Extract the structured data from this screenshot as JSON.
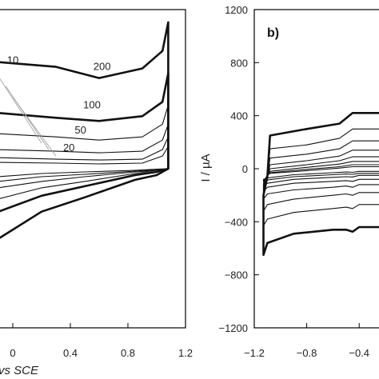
{
  "chart_data": [
    {
      "panel": "a",
      "type": "line",
      "xlabel_visible": "vs SCE",
      "xticks": [
        "0",
        "0.4",
        "0.8",
        "1.2"
      ],
      "xtick_values": [
        0,
        0.4,
        0.8,
        1.2
      ],
      "xlim": [
        -0.1,
        1.2
      ],
      "ylim": [
        -1,
        1
      ],
      "grid": false,
      "scan_rate_labels": [
        {
          "text": "10",
          "x": 0.0,
          "y": 0.66
        },
        {
          "text": "200",
          "x": 0.62,
          "y": 0.62
        },
        {
          "text": "100",
          "x": 0.55,
          "y": 0.38
        },
        {
          "text": "50",
          "x": 0.47,
          "y": 0.22
        },
        {
          "text": "20",
          "x": 0.39,
          "y": 0.11
        }
      ],
      "series": [
        {
          "upper": [
            [
              -0.1,
              0.67
            ],
            [
              0.3,
              0.64
            ],
            [
              0.6,
              0.57
            ],
            [
              0.9,
              0.63
            ],
            [
              1.04,
              0.74
            ],
            [
              1.08,
              0.92
            ]
          ],
          "lower": [
            [
              -0.1,
              -0.44
            ],
            [
              0.2,
              -0.27
            ],
            [
              0.5,
              -0.18
            ],
            [
              0.85,
              -0.07
            ],
            [
              1.0,
              -0.04
            ],
            [
              1.08,
              0.0
            ]
          ],
          "bold": true
        },
        {
          "upper": [
            [
              -0.1,
              0.35
            ],
            [
              0.3,
              0.32
            ],
            [
              0.6,
              0.3
            ],
            [
              0.9,
              0.33
            ],
            [
              1.04,
              0.42
            ],
            [
              1.08,
              0.6
            ]
          ],
          "lower": [
            [
              -0.1,
              -0.27
            ],
            [
              0.2,
              -0.17
            ],
            [
              0.5,
              -0.11
            ],
            [
              0.85,
              -0.04
            ],
            [
              1.0,
              -0.02
            ],
            [
              1.08,
              0.0
            ]
          ],
          "bold": true
        },
        {
          "upper": [
            [
              -0.1,
              0.22
            ],
            [
              0.3,
              0.2
            ],
            [
              0.6,
              0.18
            ],
            [
              0.9,
              0.2
            ],
            [
              1.04,
              0.28
            ],
            [
              1.08,
              0.4
            ]
          ],
          "lower": [
            [
              -0.1,
              -0.19
            ],
            [
              0.2,
              -0.12
            ],
            [
              0.5,
              -0.08
            ],
            [
              0.85,
              -0.03
            ],
            [
              1.0,
              -0.01
            ],
            [
              1.08,
              0.0
            ]
          ],
          "bold": false
        },
        {
          "upper": [
            [
              -0.1,
              0.12
            ],
            [
              0.3,
              0.11
            ],
            [
              0.6,
              0.1
            ],
            [
              0.9,
              0.11
            ],
            [
              1.04,
              0.18
            ],
            [
              1.08,
              0.28
            ]
          ],
          "lower": [
            [
              -0.1,
              -0.12
            ],
            [
              0.2,
              -0.08
            ],
            [
              0.5,
              -0.05
            ],
            [
              0.85,
              -0.02
            ],
            [
              1.0,
              -0.01
            ],
            [
              1.08,
              0.0
            ]
          ],
          "bold": false
        },
        {
          "upper": [
            [
              -0.1,
              0.07
            ],
            [
              0.3,
              0.06
            ],
            [
              0.6,
              0.055
            ],
            [
              0.9,
              0.06
            ],
            [
              1.04,
              0.12
            ],
            [
              1.08,
              0.2
            ]
          ],
          "lower": [
            [
              -0.1,
              -0.08
            ],
            [
              0.2,
              -0.05
            ],
            [
              0.5,
              -0.035
            ],
            [
              0.85,
              -0.015
            ],
            [
              1.0,
              -0.005
            ],
            [
              1.08,
              0.0
            ]
          ],
          "bold": false
        },
        {
          "upper": [
            [
              -0.1,
              0.04
            ],
            [
              0.3,
              0.035
            ],
            [
              0.6,
              0.03
            ],
            [
              0.9,
              0.035
            ],
            [
              1.04,
              0.08
            ],
            [
              1.08,
              0.14
            ]
          ],
          "lower": [
            [
              -0.1,
              -0.05
            ],
            [
              0.2,
              -0.03
            ],
            [
              0.5,
              -0.02
            ],
            [
              0.85,
              -0.01
            ],
            [
              1.0,
              -0.003
            ],
            [
              1.08,
              0.0
            ]
          ],
          "bold": false
        }
      ]
    },
    {
      "panel": "b",
      "type": "line",
      "title": "b)",
      "ylabel": "I / µA",
      "yticks": [
        "1200",
        "800",
        "400",
        "0",
        "−400",
        "−800",
        "−1200"
      ],
      "ytick_values": [
        1200,
        800,
        400,
        0,
        -400,
        -800,
        -1200
      ],
      "xticks": [
        "−1.2",
        "−0.8",
        "−0.4"
      ],
      "xtick_values": [
        -1.2,
        -0.8,
        -0.4
      ],
      "xlim": [
        -1.2,
        -0.2
      ],
      "ylim": [
        -1200,
        1200
      ],
      "grid": false,
      "series": [
        {
          "upper": [
            [
              -1.13,
              -200
            ],
            [
              -1.1,
              -60
            ],
            [
              -1.08,
              250
            ],
            [
              -0.8,
              300
            ],
            [
              -0.55,
              340
            ],
            [
              -0.45,
              420
            ],
            [
              -0.35,
              420
            ],
            [
              -0.2,
              420
            ]
          ],
          "lower": [
            [
              -1.13,
              -650
            ],
            [
              -1.1,
              -560
            ],
            [
              -0.9,
              -490
            ],
            [
              -0.6,
              -460
            ],
            [
              -0.5,
              -460
            ],
            [
              -0.45,
              -475
            ],
            [
              -0.4,
              -440
            ],
            [
              -0.2,
              -440
            ]
          ],
          "bold": true
        },
        {
          "upper": [
            [
              -1.13,
              -180
            ],
            [
              -1.1,
              -80
            ],
            [
              -1.08,
              150
            ],
            [
              -0.8,
              180
            ],
            [
              -0.55,
              230
            ],
            [
              -0.45,
              300
            ],
            [
              -0.35,
              300
            ],
            [
              -0.2,
              300
            ]
          ],
          "lower": [
            [
              -1.13,
              -430
            ],
            [
              -1.1,
              -380
            ],
            [
              -0.9,
              -330
            ],
            [
              -0.6,
              -300
            ],
            [
              -0.5,
              -290
            ],
            [
              -0.45,
              -300
            ],
            [
              -0.4,
              -270
            ],
            [
              -0.2,
              -270
            ]
          ],
          "bold": false
        },
        {
          "upper": [
            [
              -1.13,
              -150
            ],
            [
              -1.1,
              -70
            ],
            [
              -1.08,
              80
            ],
            [
              -0.8,
              110
            ],
            [
              -0.55,
              150
            ],
            [
              -0.45,
              210
            ],
            [
              -0.35,
              210
            ],
            [
              -0.2,
              210
            ]
          ],
          "lower": [
            [
              -1.13,
              -320
            ],
            [
              -1.1,
              -270
            ],
            [
              -0.9,
              -230
            ],
            [
              -0.6,
              -200
            ],
            [
              -0.5,
              -190
            ],
            [
              -0.45,
              -200
            ],
            [
              -0.4,
              -180
            ],
            [
              -0.2,
              -180
            ]
          ],
          "bold": false
        },
        {
          "upper": [
            [
              -1.13,
              -130
            ],
            [
              -1.1,
              -60
            ],
            [
              -1.08,
              30
            ],
            [
              -0.8,
              60
            ],
            [
              -0.55,
              95
            ],
            [
              -0.45,
              140
            ],
            [
              -0.35,
              140
            ],
            [
              -0.2,
              140
            ]
          ],
          "lower": [
            [
              -1.13,
              -230
            ],
            [
              -1.1,
              -190
            ],
            [
              -0.9,
              -160
            ],
            [
              -0.6,
              -140
            ],
            [
              -0.5,
              -130
            ],
            [
              -0.45,
              -140
            ],
            [
              -0.4,
              -120
            ],
            [
              -0.2,
              -120
            ]
          ],
          "bold": false
        },
        {
          "upper": [
            [
              -1.13,
              -120
            ],
            [
              -1.1,
              -60
            ],
            [
              -1.08,
              0
            ],
            [
              -0.8,
              30
            ],
            [
              -0.55,
              60
            ],
            [
              -0.45,
              90
            ],
            [
              -0.35,
              90
            ],
            [
              -0.2,
              90
            ]
          ],
          "lower": [
            [
              -1.13,
              -170
            ],
            [
              -1.1,
              -140
            ],
            [
              -0.9,
              -110
            ],
            [
              -0.6,
              -95
            ],
            [
              -0.5,
              -90
            ],
            [
              -0.45,
              -95
            ],
            [
              -0.4,
              -80
            ],
            [
              -0.2,
              -80
            ]
          ],
          "bold": false
        },
        {
          "upper": [
            [
              -1.13,
              -110
            ],
            [
              -1.1,
              -55
            ],
            [
              -1.08,
              -20
            ],
            [
              -0.8,
              10
            ],
            [
              -0.55,
              35
            ],
            [
              -0.45,
              55
            ],
            [
              -0.35,
              55
            ],
            [
              -0.2,
              55
            ]
          ],
          "lower": [
            [
              -1.13,
              -130
            ],
            [
              -1.1,
              -110
            ],
            [
              -0.9,
              -80
            ],
            [
              -0.6,
              -65
            ],
            [
              -0.5,
              -60
            ],
            [
              -0.45,
              -62
            ],
            [
              -0.4,
              -50
            ],
            [
              -0.2,
              -50
            ]
          ],
          "bold": false
        },
        {
          "upper": [
            [
              -1.13,
              -100
            ],
            [
              -1.1,
              -50
            ],
            [
              -1.08,
              -30
            ],
            [
              -0.8,
              -5
            ],
            [
              -0.55,
              15
            ],
            [
              -0.45,
              30
            ],
            [
              -0.35,
              30
            ],
            [
              -0.2,
              30
            ]
          ],
          "lower": [
            [
              -1.13,
              -100
            ],
            [
              -1.1,
              -85
            ],
            [
              -0.9,
              -60
            ],
            [
              -0.6,
              -45
            ],
            [
              -0.5,
              -40
            ],
            [
              -0.45,
              -42
            ],
            [
              -0.4,
              -35
            ],
            [
              -0.2,
              -35
            ]
          ],
          "bold": false
        },
        {
          "upper": [
            [
              -1.13,
              -95
            ],
            [
              -1.1,
              -50
            ],
            [
              -1.08,
              -35
            ],
            [
              -0.8,
              -15
            ],
            [
              -0.55,
              5
            ],
            [
              -0.45,
              15
            ],
            [
              -0.35,
              15
            ],
            [
              -0.2,
              15
            ]
          ],
          "lower": [
            [
              -1.13,
              -80
            ],
            [
              -1.1,
              -70
            ],
            [
              -0.9,
              -45
            ],
            [
              -0.6,
              -30
            ],
            [
              -0.5,
              -25
            ],
            [
              -0.45,
              -27
            ],
            [
              -0.4,
              -20
            ],
            [
              -0.2,
              -20
            ]
          ],
          "bold": false
        }
      ]
    }
  ]
}
